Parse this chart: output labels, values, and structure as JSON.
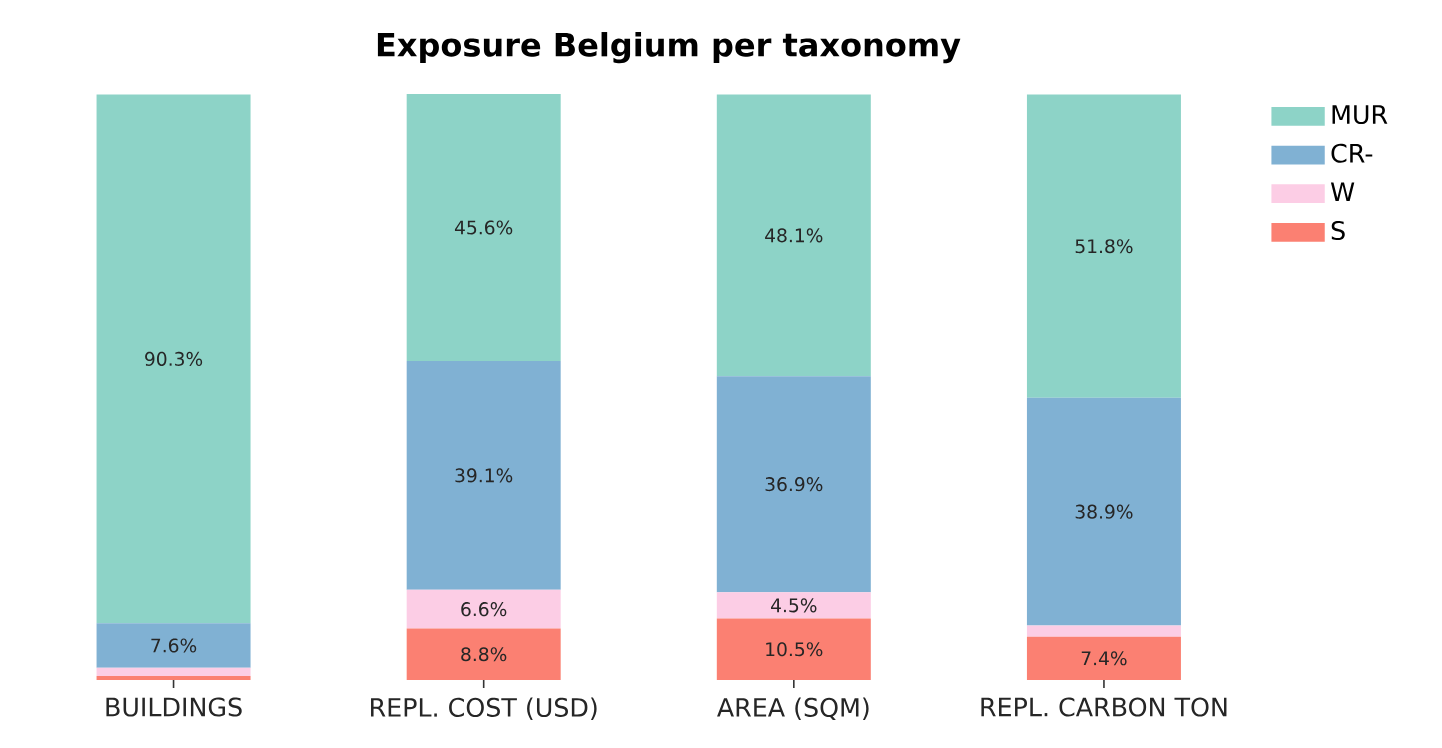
{
  "chart_data": {
    "type": "bar",
    "title": "Exposure Belgium per taxonomy",
    "stacked": true,
    "legend": "top right",
    "categories": [
      "BUILDINGS",
      "REPL. COST (USD)",
      "AREA (SQM)",
      "REPL. CARBON TON"
    ],
    "series": [
      {
        "name": "S",
        "color": "#fb8072",
        "values": [
          0.7,
          8.8,
          10.5,
          7.4
        ],
        "value_labels": [
          null,
          "8.8%",
          "10.5%",
          "7.4%"
        ]
      },
      {
        "name": "W",
        "color": "#fccde5",
        "values": [
          1.4,
          6.6,
          4.5,
          1.9
        ],
        "value_labels": [
          null,
          "6.6%",
          "4.5%",
          null
        ]
      },
      {
        "name": "CR-",
        "color": "#80b1d3",
        "values": [
          7.6,
          39.1,
          36.9,
          38.9
        ],
        "value_labels": [
          "7.6%",
          "39.1%",
          "36.9%",
          "38.9%"
        ]
      },
      {
        "name": "MUR",
        "color": "#8dd3c7",
        "values": [
          90.3,
          45.6,
          48.1,
          51.8
        ],
        "value_labels": [
          "90.3%",
          "45.6%",
          "48.1%",
          "51.8%"
        ]
      }
    ]
  }
}
